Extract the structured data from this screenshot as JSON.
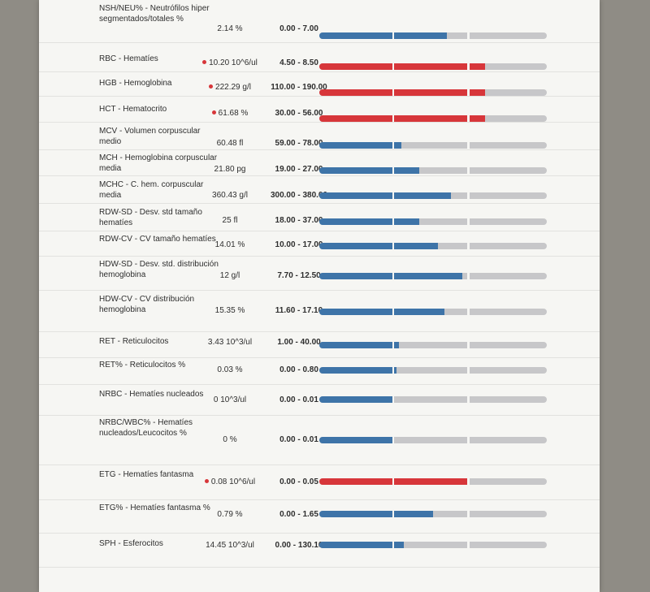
{
  "results": [
    {
      "name": "NSH/NEU% - Neutrófilos hiper segmentados/totales %",
      "value": "2.14 %",
      "range": "0.00 - 7.00",
      "flag": false,
      "fill_percent": 56
    },
    {
      "name": "RBC - Hematíes",
      "value": "10.20 10^6/ul",
      "range": "4.50 - 8.50",
      "flag": true,
      "fill_percent": 73
    },
    {
      "name": "HGB - Hemoglobina",
      "value": "222.29 g/l",
      "range": "110.00 - 190.00",
      "flag": true,
      "fill_percent": 73
    },
    {
      "name": "HCT - Hematocrito",
      "value": "61.68 %",
      "range": "30.00 - 56.00",
      "flag": true,
      "fill_percent": 73
    },
    {
      "name": "MCV - Volumen corpuscular medio",
      "value": "60.48 fl",
      "range": "59.00 - 78.00",
      "flag": false,
      "fill_percent": 36
    },
    {
      "name": "MCH - Hemoglobina corpuscular media",
      "value": "21.80 pg",
      "range": "19.00 - 27.00",
      "flag": false,
      "fill_percent": 44
    },
    {
      "name": "MCHC - C. hem. corpuscular media",
      "value": "360.43 g/l",
      "range": "300.00 - 380.00",
      "flag": false,
      "fill_percent": 58
    },
    {
      "name": "RDW-SD - Desv. std tamaño hematíes",
      "value": "25 fl",
      "range": "18.00 - 37.00",
      "flag": false,
      "fill_percent": 44
    },
    {
      "name": "RDW-CV - CV tamaño hematíes",
      "value": "14.01 %",
      "range": "10.00 - 17.00",
      "flag": false,
      "fill_percent": 52
    },
    {
      "name": "HDW-SD - Desv. std. distribución hemoglobina",
      "value": "12 g/l",
      "range": "7.70 - 12.50",
      "flag": false,
      "fill_percent": 63
    },
    {
      "name": "HDW-CV - CV distribución hemoglobina",
      "value": "15.35 %",
      "range": "11.60 - 17.10",
      "flag": false,
      "fill_percent": 55
    },
    {
      "name": "RET - Reticulocitos",
      "value": "3.43 10^3/ul",
      "range": "1.00 - 40.00",
      "flag": false,
      "fill_percent": 35
    },
    {
      "name": "RET% - Reticulocitos %",
      "value": "0.03 %",
      "range": "0.00 - 0.80",
      "flag": false,
      "fill_percent": 34
    },
    {
      "name": "NRBC - Hematíes nucleados",
      "value": "0 10^3/ul",
      "range": "0.00 - 0.01",
      "flag": false,
      "fill_percent": 32
    },
    {
      "name": "NRBC/WBC% - Hematíes nucleados/Leucocitos %",
      "value": "0 %",
      "range": "0.00 - 0.01",
      "flag": false,
      "fill_percent": 32
    },
    {
      "name": "ETG - Hematíes fantasma",
      "value": "0.08 10^6/ul",
      "range": "0.00 - 0.05",
      "flag": true,
      "fill_percent": 66
    },
    {
      "name": "ETG% - Hematíes fantasma %",
      "value": "0.79 %",
      "range": "0.00 - 1.65",
      "flag": false,
      "fill_percent": 50
    },
    {
      "name": "SPH - Esferocitos",
      "value": "14.45 10^3/ul",
      "range": "0.00 - 130.10",
      "flag": false,
      "fill_percent": 37
    }
  ],
  "colors": {
    "normal": "#3e74a8",
    "out_of_range": "#d7363a",
    "track": "#c7c7c9",
    "flag_dot": "#d7363a"
  }
}
